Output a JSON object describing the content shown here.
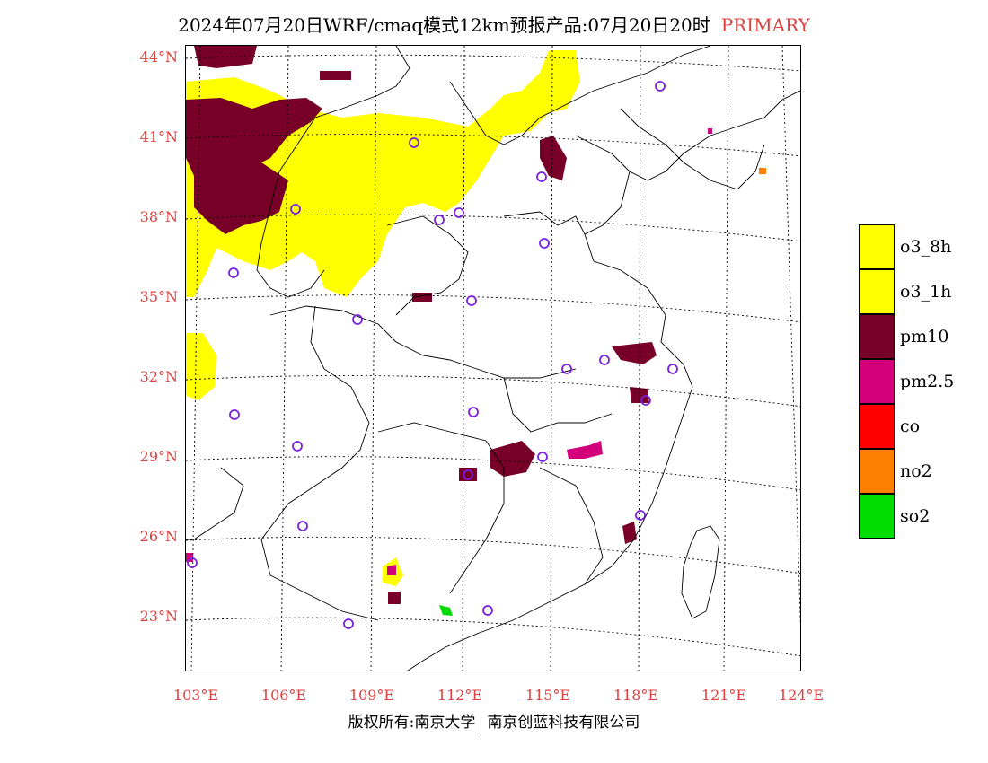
{
  "title": {
    "main": "2024年07月20日WRF/cmaq模式12km预报产品:07月20日20时",
    "tag": "PRIMARY"
  },
  "latitude_labels": [
    "44°N",
    "41°N",
    "38°N",
    "35°N",
    "32°N",
    "29°N",
    "26°N",
    "23°N"
  ],
  "longitude_labels": [
    "103°E",
    "106°E",
    "109°E",
    "112°E",
    "115°E",
    "118°E",
    "121°E",
    "124°E"
  ],
  "legend": [
    {
      "label": "o3_8h",
      "color": "#ffff00"
    },
    {
      "label": "o3_1h",
      "color": "#ffff00"
    },
    {
      "label": "pm10",
      "color": "#780028"
    },
    {
      "label": "pm2.5",
      "color": "#d2007a"
    },
    {
      "label": "co",
      "color": "#ff0000"
    },
    {
      "label": "no2",
      "color": "#ff8000"
    },
    {
      "label": "so2",
      "color": "#00dc00"
    }
  ],
  "footer": {
    "left": "版权所有:南京大学",
    "right": "南京创蓝科技有限公司"
  },
  "colors": {
    "axis_label": "#e04040",
    "station_marker": "#7a20e0"
  }
}
